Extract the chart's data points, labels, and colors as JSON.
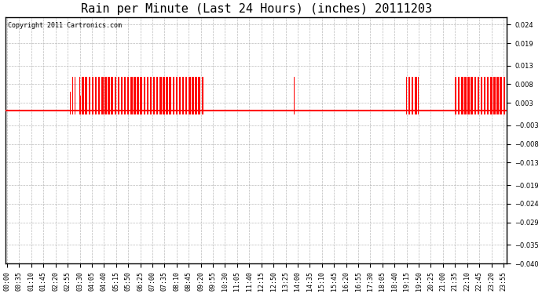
{
  "title": "Rain per Minute (Last 24 Hours) (inches) 20111203",
  "copyright": "Copyright 2011 Cartronics.com",
  "ylim": [
    -0.04,
    0.026
  ],
  "yticks": [
    -0.04,
    -0.035,
    -0.029,
    -0.024,
    -0.019,
    -0.013,
    -0.008,
    -0.003,
    0.003,
    0.008,
    0.013,
    0.019,
    0.024
  ],
  "bar_color": "#ff0000",
  "hline_y": 0.001,
  "background_color": "#ffffff",
  "plot_bg_color": "#ffffff",
  "grid_color": "#aaaaaa",
  "title_fontsize": 11,
  "tick_fontsize": 6,
  "copyright_fontsize": 6,
  "bar_height": 0.01,
  "total_minutes": 1440,
  "x_tick_minutes": [
    0,
    35,
    70,
    105,
    140,
    175,
    210,
    245,
    280,
    315,
    350,
    385,
    420,
    455,
    490,
    525,
    560,
    595,
    630,
    665,
    700,
    735,
    770,
    805,
    840,
    875,
    910,
    945,
    980,
    1015,
    1050,
    1085,
    1120,
    1155,
    1190,
    1225,
    1260,
    1295,
    1330,
    1365,
    1400,
    1435
  ],
  "x_tick_labels": [
    "00:00",
    "00:35",
    "01:10",
    "01:45",
    "02:20",
    "02:55",
    "03:30",
    "04:05",
    "04:40",
    "05:15",
    "05:50",
    "06:25",
    "07:00",
    "07:35",
    "08:10",
    "08:45",
    "09:20",
    "09:55",
    "10:30",
    "11:05",
    "11:40",
    "12:15",
    "12:50",
    "13:25",
    "14:00",
    "14:35",
    "15:10",
    "15:45",
    "16:20",
    "16:55",
    "17:30",
    "18:05",
    "18:40",
    "19:15",
    "19:50",
    "20:25",
    "21:00",
    "21:35",
    "22:10",
    "22:45",
    "23:20",
    "23:55"
  ],
  "rain_bars": [
    [
      183,
      0.006
    ],
    [
      190,
      0.01
    ],
    [
      193,
      0.01
    ],
    [
      196,
      0.01
    ],
    [
      210,
      0.01
    ],
    [
      213,
      0.005
    ],
    [
      216,
      0.01
    ],
    [
      219,
      0.01
    ],
    [
      222,
      0.01
    ],
    [
      225,
      0.01
    ],
    [
      228,
      0.01
    ],
    [
      231,
      0.01
    ],
    [
      234,
      0.01
    ],
    [
      237,
      0.01
    ],
    [
      240,
      0.01
    ],
    [
      243,
      0.005
    ],
    [
      246,
      0.01
    ],
    [
      249,
      0.01
    ],
    [
      252,
      0.01
    ],
    [
      255,
      0.01
    ],
    [
      258,
      0.01
    ],
    [
      261,
      0.01
    ],
    [
      264,
      0.01
    ],
    [
      267,
      0.01
    ],
    [
      270,
      0.01
    ],
    [
      273,
      0.01
    ],
    [
      276,
      0.01
    ],
    [
      279,
      0.01
    ],
    [
      282,
      0.01
    ],
    [
      285,
      0.01
    ],
    [
      288,
      0.01
    ],
    [
      291,
      0.01
    ],
    [
      294,
      0.01
    ],
    [
      297,
      0.01
    ],
    [
      300,
      0.01
    ],
    [
      303,
      0.01
    ],
    [
      306,
      0.01
    ],
    [
      309,
      0.01
    ],
    [
      312,
      0.01
    ],
    [
      315,
      0.01
    ],
    [
      318,
      0.01
    ],
    [
      321,
      0.01
    ],
    [
      324,
      0.01
    ],
    [
      327,
      0.01
    ],
    [
      330,
      0.01
    ],
    [
      333,
      0.01
    ],
    [
      336,
      0.01
    ],
    [
      339,
      0.01
    ],
    [
      342,
      0.01
    ],
    [
      345,
      0.01
    ],
    [
      348,
      0.01
    ],
    [
      351,
      0.01
    ],
    [
      354,
      0.01
    ],
    [
      357,
      0.01
    ],
    [
      360,
      0.01
    ],
    [
      363,
      0.01
    ],
    [
      366,
      0.01
    ],
    [
      369,
      0.01
    ],
    [
      372,
      0.01
    ],
    [
      375,
      0.01
    ],
    [
      378,
      0.01
    ],
    [
      381,
      0.01
    ],
    [
      384,
      0.01
    ],
    [
      387,
      0.01
    ],
    [
      390,
      0.01
    ],
    [
      393,
      0.01
    ],
    [
      396,
      0.01
    ],
    [
      399,
      0.01
    ],
    [
      402,
      0.01
    ],
    [
      405,
      0.01
    ],
    [
      408,
      0.01
    ],
    [
      411,
      0.01
    ],
    [
      414,
      0.01
    ],
    [
      417,
      0.01
    ],
    [
      420,
      0.01
    ],
    [
      423,
      0.01
    ],
    [
      426,
      0.01
    ],
    [
      429,
      0.01
    ],
    [
      432,
      0.01
    ],
    [
      435,
      0.01
    ],
    [
      438,
      0.01
    ],
    [
      441,
      0.01
    ],
    [
      444,
      0.01
    ],
    [
      447,
      0.01
    ],
    [
      450,
      0.01
    ],
    [
      453,
      0.01
    ],
    [
      456,
      0.01
    ],
    [
      459,
      0.01
    ],
    [
      462,
      0.01
    ],
    [
      465,
      0.01
    ],
    [
      468,
      0.01
    ],
    [
      471,
      0.01
    ],
    [
      474,
      0.01
    ],
    [
      477,
      0.01
    ],
    [
      480,
      0.01
    ],
    [
      483,
      0.01
    ],
    [
      486,
      0.01
    ],
    [
      489,
      0.01
    ],
    [
      492,
      0.01
    ],
    [
      495,
      0.01
    ],
    [
      498,
      0.01
    ],
    [
      501,
      0.01
    ],
    [
      504,
      0.01
    ],
    [
      507,
      0.01
    ],
    [
      510,
      0.01
    ],
    [
      513,
      0.01
    ],
    [
      516,
      0.01
    ],
    [
      519,
      0.01
    ],
    [
      522,
      0.01
    ],
    [
      525,
      0.01
    ],
    [
      528,
      0.01
    ],
    [
      531,
      0.01
    ],
    [
      534,
      0.01
    ],
    [
      537,
      0.01
    ],
    [
      540,
      0.01
    ],
    [
      543,
      0.01
    ],
    [
      546,
      0.01
    ],
    [
      549,
      0.01
    ],
    [
      552,
      0.01
    ],
    [
      555,
      0.01
    ],
    [
      558,
      0.01
    ],
    [
      561,
      0.01
    ],
    [
      564,
      0.01
    ],
    [
      567,
      0.01
    ],
    [
      570,
      0.01
    ],
    [
      830,
      0.01
    ],
    [
      1155,
      0.01
    ],
    [
      1158,
      0.01
    ],
    [
      1161,
      0.01
    ],
    [
      1164,
      0.01
    ],
    [
      1167,
      0.01
    ],
    [
      1170,
      0.01
    ],
    [
      1173,
      0.01
    ],
    [
      1176,
      0.01
    ],
    [
      1179,
      0.01
    ],
    [
      1182,
      0.01
    ],
    [
      1185,
      0.01
    ],
    [
      1188,
      0.01
    ],
    [
      1295,
      0.01
    ],
    [
      1298,
      0.01
    ],
    [
      1301,
      0.01
    ],
    [
      1304,
      0.01
    ],
    [
      1307,
      0.01
    ],
    [
      1310,
      0.01
    ],
    [
      1313,
      0.01
    ],
    [
      1316,
      0.01
    ],
    [
      1319,
      0.01
    ],
    [
      1322,
      0.01
    ],
    [
      1325,
      0.01
    ],
    [
      1328,
      0.01
    ],
    [
      1331,
      0.01
    ],
    [
      1334,
      0.01
    ],
    [
      1337,
      0.01
    ],
    [
      1340,
      0.01
    ],
    [
      1343,
      0.01
    ],
    [
      1346,
      0.01
    ],
    [
      1349,
      0.01
    ],
    [
      1352,
      0.01
    ],
    [
      1355,
      0.01
    ],
    [
      1358,
      0.01
    ],
    [
      1361,
      0.01
    ],
    [
      1364,
      0.01
    ],
    [
      1367,
      0.01
    ],
    [
      1370,
      0.01
    ],
    [
      1373,
      0.01
    ],
    [
      1376,
      0.01
    ],
    [
      1379,
      0.01
    ],
    [
      1382,
      0.01
    ],
    [
      1385,
      0.01
    ],
    [
      1388,
      0.01
    ],
    [
      1391,
      0.01
    ],
    [
      1394,
      0.01
    ],
    [
      1397,
      0.01
    ],
    [
      1400,
      0.01
    ],
    [
      1403,
      0.01
    ],
    [
      1406,
      0.01
    ],
    [
      1409,
      0.01
    ],
    [
      1412,
      0.01
    ],
    [
      1415,
      0.01
    ],
    [
      1418,
      0.01
    ],
    [
      1421,
      0.01
    ],
    [
      1424,
      0.01
    ],
    [
      1427,
      0.01
    ],
    [
      1430,
      0.01
    ],
    [
      1433,
      0.01
    ],
    [
      1436,
      0.01
    ],
    [
      1439,
      0.01
    ]
  ]
}
